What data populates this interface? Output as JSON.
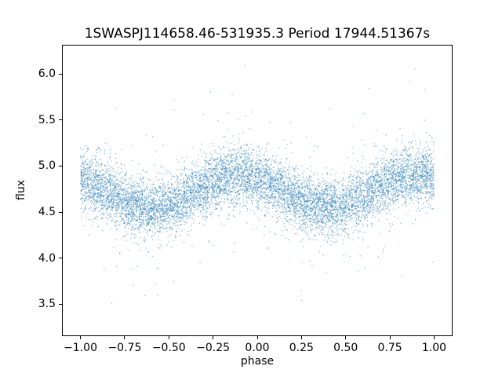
{
  "chart_data": {
    "type": "scatter",
    "title": "1SWASPJ114658.46-531935.3 Period 17944.51367s",
    "xlabel": "phase",
    "ylabel": "flux",
    "xlim": [
      -1.1,
      1.1
    ],
    "ylim": [
      3.16,
      6.31
    ],
    "grid": false,
    "legend": "none",
    "marker_color": "#1f77b4",
    "marker_alpha": 0.5,
    "marker_size_px": 1.3,
    "x_ticks": {
      "values": [
        -1.0,
        -0.75,
        -0.5,
        -0.25,
        0.0,
        0.25,
        0.5,
        0.75,
        1.0
      ],
      "labels": [
        "−1.00",
        "−0.75",
        "−0.50",
        "−0.25",
        "0.00",
        "0.25",
        "0.50",
        "0.75",
        "1.00"
      ]
    },
    "y_ticks": {
      "values": [
        3.5,
        4.0,
        4.5,
        5.0,
        5.5,
        6.0
      ],
      "labels": [
        "3.5",
        "4.0",
        "4.5",
        "5.0",
        "5.5",
        "6.0"
      ]
    },
    "n_points": 9000,
    "model": {
      "description": "Phased light curve: flux = mean_flux + amplitude*cos(2*pi*(phase - phase_of_max)) + gaussian noise; phase uniform over x_range; small fraction of outliers with larger sigma",
      "x_range": [
        -1.0,
        1.0
      ],
      "period_in_phase": 1.0,
      "mean_flux": 4.72,
      "amplitude": 0.18,
      "phase_of_max": -0.1,
      "noise_sigma": 0.155,
      "outlier_fraction": 0.05,
      "outlier_sigma": 0.42,
      "seed": 42
    },
    "summary": {
      "band_center_at_peak": 4.9,
      "band_center_at_trough": 4.54,
      "visible_flux_min": 3.3,
      "visible_flux_max": 6.17
    }
  }
}
